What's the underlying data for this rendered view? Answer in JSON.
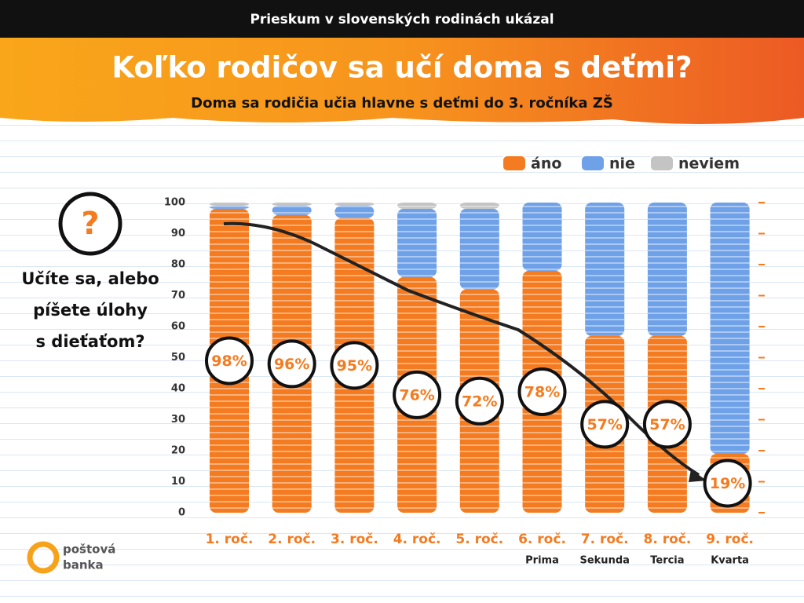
{
  "header": {
    "kicker": "Prieskum v slovenských rodinách ukázal",
    "title": "Koľko rodičov sa učí doma s deťmi?",
    "subtitle": "Doma sa rodičia učia hlavne s deťmi do 3. ročníka ZŠ"
  },
  "side": {
    "icon": "?",
    "question": [
      "Učíte sa, alebo",
      "píšete úlohy",
      "s dieťaťom?"
    ]
  },
  "logo": [
    "poštová",
    "banka"
  ],
  "chart_data": {
    "type": "bar",
    "stacked": true,
    "categories": [
      "1. roč.",
      "2. roč.",
      "3. roč.",
      "4. roč.",
      "5. roč.",
      "6. roč.",
      "7. roč.",
      "8. roč.",
      "9. roč."
    ],
    "category_sublabels": [
      null,
      null,
      null,
      null,
      null,
      "Prima",
      "Sekunda",
      "Tercia",
      "Kvarta"
    ],
    "series": [
      {
        "name": "áno",
        "color": "#f47b20",
        "values": [
          98,
          96,
          95,
          76,
          72,
          78,
          57,
          57,
          19
        ],
        "value_labels": [
          "98%",
          "96%",
          "95%",
          "76%",
          "72%",
          "78%",
          "57%",
          "57%",
          "19%"
        ]
      },
      {
        "name": "nie",
        "color": "#6fa1e8",
        "values": [
          1,
          3,
          4,
          22,
          26,
          22,
          43,
          43,
          81
        ]
      },
      {
        "name": "neviem",
        "color": "#c4c4c4",
        "values": [
          1,
          1,
          1,
          2,
          2,
          0,
          0,
          0,
          0
        ]
      }
    ],
    "ylim": [
      0,
      100
    ],
    "yticks": [
      0,
      10,
      20,
      30,
      40,
      50,
      60,
      70,
      80,
      90,
      100
    ],
    "legend": "top-right"
  }
}
